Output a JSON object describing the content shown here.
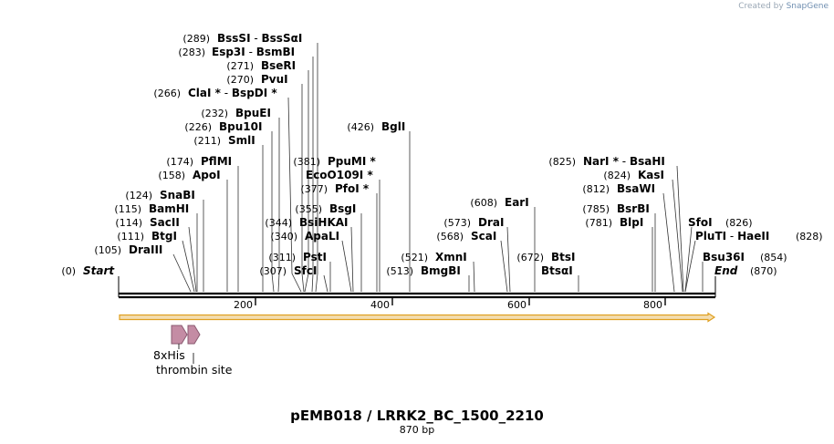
{
  "credit": {
    "prefix": "Created by",
    "brand": "SnapGene"
  },
  "title": "pEMB018 / LRRK2_BC_1500_2210",
  "subtitle": "870 bp",
  "start_label": {
    "pos": "(0)",
    "name": "Start"
  },
  "end_label": {
    "name": "End",
    "pos": "(870)"
  },
  "ticks": [
    "200",
    "400",
    "600",
    "800"
  ],
  "sites": [
    {
      "pos": "(289)",
      "name": "BssSI",
      "name2": "BssSαI",
      "star1": false,
      "star2": false
    },
    {
      "pos": "(283)",
      "name": "Esp3I",
      "name2": "BsmBI",
      "star1": false,
      "star2": false
    },
    {
      "pos": "(271)",
      "name": "BseRI",
      "name2": "",
      "star1": false,
      "star2": false
    },
    {
      "pos": "(270)",
      "name": "PvuI",
      "name2": "",
      "star1": false,
      "star2": false
    },
    {
      "pos": "(266)",
      "name": "ClaI",
      "name2": "BspDI",
      "star1": true,
      "star2": true
    },
    {
      "pos": "(232)",
      "name": "BpuEI",
      "name2": "",
      "star1": false,
      "star2": false
    },
    {
      "pos": "(226)",
      "name": "Bpu10I",
      "name2": "",
      "star1": false,
      "star2": false
    },
    {
      "pos": "(211)",
      "name": "SmlI",
      "name2": "",
      "star1": false,
      "star2": false
    },
    {
      "pos": "(174)",
      "name": "PflMI",
      "name2": "",
      "star1": false,
      "star2": false
    },
    {
      "pos": "(158)",
      "name": "ApoI",
      "name2": "",
      "star1": false,
      "star2": false
    },
    {
      "pos": "(124)",
      "name": "SnaBI",
      "name2": "",
      "star1": false,
      "star2": false
    },
    {
      "pos": "(115)",
      "name": "BamHI",
      "name2": "",
      "star1": false,
      "star2": false
    },
    {
      "pos": "(114)",
      "name": "SacII",
      "name2": "",
      "star1": false,
      "star2": false
    },
    {
      "pos": "(111)",
      "name": "BtgI",
      "name2": "",
      "star1": false,
      "star2": false
    },
    {
      "pos": "(105)",
      "name": "DraIII",
      "name2": "",
      "star1": false,
      "star2": false
    },
    {
      "pos": "(426)",
      "name": "BglI",
      "name2": "",
      "star1": false,
      "star2": false
    },
    {
      "pos": "(381)",
      "name": "PpuMI",
      "name2": "",
      "star1": true,
      "star2": false
    },
    {
      "pos": "",
      "name": "EcoO109I",
      "name2": "",
      "star1": true,
      "star2": false
    },
    {
      "pos": "(377)",
      "name": "PfoI",
      "name2": "",
      "star1": true,
      "star2": false
    },
    {
      "pos": "(355)",
      "name": "BsgI",
      "name2": "",
      "star1": false,
      "star2": false
    },
    {
      "pos": "(344)",
      "name": "BsiHKAI",
      "name2": "",
      "star1": false,
      "star2": false
    },
    {
      "pos": "(340)",
      "name": "ApaLI",
      "name2": "",
      "star1": false,
      "star2": false
    },
    {
      "pos": "(311)",
      "name": "PstI",
      "name2": "",
      "star1": false,
      "star2": false
    },
    {
      "pos": "(307)",
      "name": "SfcI",
      "name2": "",
      "star1": false,
      "star2": false
    },
    {
      "pos": "(608)",
      "name": "EarI",
      "name2": "",
      "star1": false,
      "star2": false
    },
    {
      "pos": "(573)",
      "name": "DraI",
      "name2": "",
      "star1": false,
      "star2": false
    },
    {
      "pos": "(568)",
      "name": "ScaI",
      "name2": "",
      "star1": false,
      "star2": false
    },
    {
      "pos": "(521)",
      "name": "XmnI",
      "name2": "",
      "star1": false,
      "star2": false
    },
    {
      "pos": "(513)",
      "name": "BmgBI",
      "name2": "",
      "star1": false,
      "star2": false
    },
    {
      "pos": "(672)",
      "name": "BtsI",
      "name2": "",
      "star1": false,
      "star2": false
    },
    {
      "pos": "",
      "name": "BtsαI",
      "name2": "",
      "star1": false,
      "star2": false
    },
    {
      "pos": "(825)",
      "name": "NarI",
      "name2": "BsaHI",
      "star1": true,
      "star2": false
    },
    {
      "pos": "(824)",
      "name": "KasI",
      "name2": "",
      "star1": false,
      "star2": false
    },
    {
      "pos": "(812)",
      "name": "BsaWI",
      "name2": "",
      "star1": false,
      "star2": false
    },
    {
      "pos": "(785)",
      "name": "BsrBI",
      "name2": "",
      "star1": false,
      "star2": false
    },
    {
      "pos": "(781)",
      "name": "BlpI",
      "name2": "",
      "star1": false,
      "star2": false
    },
    {
      "pos": "(826)",
      "name": "SfoI",
      "name2": "",
      "star1": false,
      "star2": false
    },
    {
      "pos": "(828)",
      "name": "PluTI",
      "name2": "HaeII",
      "star1": false,
      "star2": false
    },
    {
      "pos": "(854)",
      "name": "Bsu36I",
      "name2": "",
      "star1": false,
      "star2": false
    }
  ],
  "features": [
    {
      "label": "8xHis",
      "color": "#c48ca4"
    },
    {
      "label": "thrombin site",
      "color": "#c48ca4"
    }
  ],
  "colors": {
    "orf_fill": "#f3ddb0",
    "orf_stroke": "#e0a020",
    "feature": "#c48ca4"
  }
}
